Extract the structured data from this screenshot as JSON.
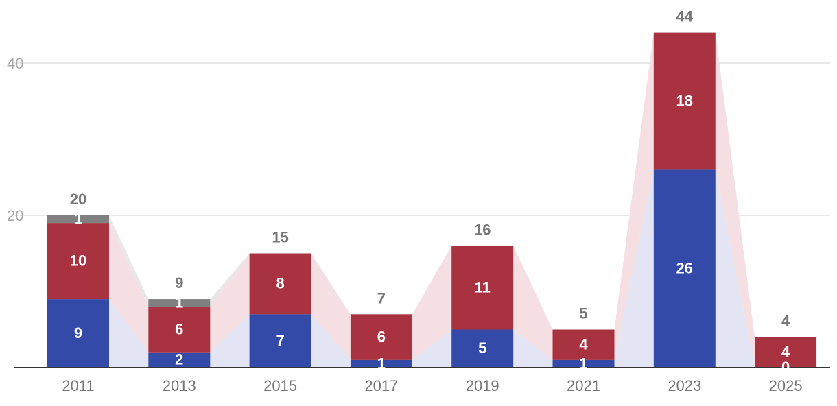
{
  "chart_data": {
    "type": "bar",
    "stacked": true,
    "categories": [
      "2011",
      "2013",
      "2015",
      "2017",
      "2019",
      "2021",
      "2023",
      "2025"
    ],
    "series": [
      {
        "values": [
          9,
          2,
          7,
          1,
          5,
          1,
          26,
          0
        ],
        "color": "#334aa8"
      },
      {
        "values": [
          10,
          6,
          8,
          6,
          11,
          4,
          18,
          4
        ],
        "color": "#a93240"
      },
      {
        "values": [
          1,
          1,
          0,
          0,
          0,
          0,
          0,
          0
        ],
        "color": "#808080"
      }
    ],
    "totals": [
      20,
      9,
      15,
      7,
      16,
      5,
      44,
      4
    ],
    "yticks": [
      20,
      40
    ],
    "ylim": [
      0,
      44
    ],
    "grid": true,
    "band_colors": [
      "#e3e5f4",
      "#f5dfe2",
      "#e8e8e8"
    ],
    "title": "",
    "xlabel": "",
    "ylabel": ""
  }
}
